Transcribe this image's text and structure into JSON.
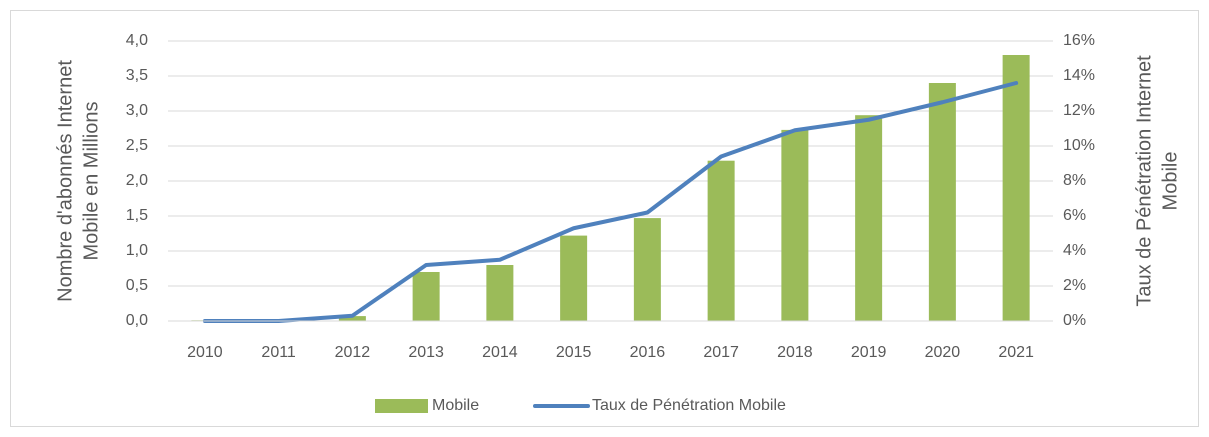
{
  "chart_data": {
    "type": "bar_line",
    "categories": [
      "2010",
      "2011",
      "2012",
      "2013",
      "2014",
      "2015",
      "2016",
      "2017",
      "2018",
      "2019",
      "2020",
      "2021"
    ],
    "series": [
      {
        "name": "Mobile",
        "type": "bar",
        "color": "#9bbb59",
        "values": [
          0.01,
          0.01,
          0.07,
          0.7,
          0.8,
          1.22,
          1.47,
          2.29,
          2.73,
          2.94,
          3.4,
          3.8
        ]
      },
      {
        "name": "Taux de Pénétration Mobile",
        "type": "line",
        "axis": "y2",
        "color": "#4f81bd",
        "values": [
          0,
          0,
          0.3,
          3.2,
          3.5,
          5.3,
          6.2,
          9.4,
          10.9,
          11.5,
          12.5,
          13.6
        ]
      }
    ],
    "ylabel": [
      "Nombre d'abonnés Internet",
      "Mobile en Millions"
    ],
    "y2label": [
      "Taux de Pénétration Internet",
      "Mobile"
    ],
    "ylim": [
      0,
      4
    ],
    "yticks": [
      {
        "value": 0,
        "label": "0,0"
      },
      {
        "value": 0.5,
        "label": "0,5"
      },
      {
        "value": 1,
        "label": "1,0"
      },
      {
        "value": 1.5,
        "label": "1,5"
      },
      {
        "value": 2,
        "label": "2,0"
      },
      {
        "value": 2.5,
        "label": "2,5"
      },
      {
        "value": 3,
        "label": "3,0"
      },
      {
        "value": 3.5,
        "label": "3,5"
      },
      {
        "value": 4,
        "label": "4,0"
      }
    ],
    "y2lim": [
      0,
      16
    ],
    "y2ticks": [
      {
        "value": 0,
        "label": "0%"
      },
      {
        "value": 2,
        "label": "2%"
      },
      {
        "value": 4,
        "label": "4%"
      },
      {
        "value": 6,
        "label": "6%"
      },
      {
        "value": 8,
        "label": "8%"
      },
      {
        "value": 10,
        "label": "10%"
      },
      {
        "value": 12,
        "label": "12%"
      },
      {
        "value": 14,
        "label": "14%"
      },
      {
        "value": 16,
        "label": "16%"
      }
    ],
    "grid": true,
    "legend": "bottom"
  }
}
